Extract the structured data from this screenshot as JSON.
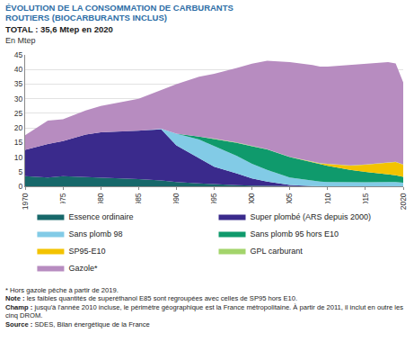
{
  "chart_data": {
    "type": "area",
    "title": "ÉVOLUTION DE LA CONSOMMATION DE CARBURANTS ROUTIERS (BIOCARBURANTS INCLUS)",
    "subtitle": "TOTAL : 35,6 Mtep en 2020",
    "y_label": "En Mtep",
    "stacked": true,
    "grid": true,
    "legend": "bottom",
    "x": [
      1970,
      1973,
      1975,
      1978,
      1980,
      1983,
      1985,
      1988,
      1990,
      1993,
      1995,
      1998,
      2000,
      2002,
      2005,
      2008,
      2009,
      2010,
      2013,
      2015,
      2018,
      2019,
      2020
    ],
    "xlim": [
      1970,
      2020
    ],
    "xticks": [
      1970,
      1975,
      1980,
      1985,
      1990,
      1995,
      2000,
      2005,
      2010,
      2015,
      2020
    ],
    "ylim": [
      0,
      45
    ],
    "yticks": [
      0,
      5,
      10,
      15,
      20,
      25,
      30,
      35,
      40,
      45
    ],
    "series": [
      {
        "name": "Essence ordinaire",
        "color": "#17686a",
        "values": [
          3.5,
          3.0,
          3.5,
          3.2,
          3.0,
          2.8,
          2.5,
          2.0,
          1.5,
          1.0,
          0.7,
          0.4,
          0.2,
          0.1,
          0,
          0,
          0,
          0,
          0,
          0,
          0,
          0,
          0
        ]
      },
      {
        "name": "Super plombé (ARS depuis 2000)",
        "color": "#3a2a8c",
        "values": [
          9.0,
          11.5,
          12.0,
          14.5,
          15.5,
          16.0,
          16.5,
          17.5,
          12.5,
          8.5,
          6.0,
          4.0,
          2.5,
          1.5,
          0.5,
          0.1,
          0,
          0,
          0,
          0,
          0,
          0,
          0
        ]
      },
      {
        "name": "Sans plomb 98",
        "color": "#82cbe6",
        "values": [
          0,
          0,
          0,
          0,
          0,
          0,
          0,
          0.2,
          4.0,
          6.5,
          7.0,
          6.0,
          5.0,
          4.0,
          2.5,
          1.7,
          1.6,
          1.5,
          1.4,
          1.4,
          1.5,
          1.5,
          1.2
        ]
      },
      {
        "name": "Sans plomb 95 hors E10",
        "color": "#0f9a6c",
        "values": [
          0,
          0,
          0,
          0,
          0,
          0,
          0,
          0,
          0,
          1.0,
          2.5,
          4.5,
          6.0,
          7.0,
          7.0,
          6.5,
          6.0,
          5.5,
          4.2,
          3.5,
          2.6,
          2.3,
          2.0
        ]
      },
      {
        "name": "SP95-E10",
        "color": "#f3c300",
        "values": [
          0,
          0,
          0,
          0,
          0,
          0,
          0,
          0,
          0,
          0,
          0,
          0,
          0,
          0,
          0,
          0,
          0.2,
          0.6,
          1.5,
          2.5,
          4.0,
          4.5,
          4.2
        ]
      },
      {
        "name": "GPL carburant",
        "color": "#a3d46b",
        "values": [
          0,
          0,
          0,
          0,
          0,
          0,
          0,
          0,
          0,
          0,
          0.1,
          0.1,
          0.15,
          0.15,
          0.1,
          0.1,
          0.1,
          0.1,
          0.1,
          0.1,
          0.1,
          0.1,
          0.1
        ]
      },
      {
        "name": "Gazole*",
        "color": "#b78cc0",
        "values": [
          5.0,
          8.0,
          7.5,
          8.3,
          9.0,
          10.2,
          11.0,
          13.3,
          17.0,
          20.5,
          22.2,
          25.5,
          28.15,
          30.25,
          32.4,
          33.1,
          33.1,
          33.3,
          34.3,
          34.5,
          34.3,
          33.7,
          28.1
        ]
      }
    ],
    "notes": [
      {
        "text": "* Hors gazole pêche à partir de 2019."
      },
      {
        "label": "Note :",
        "text": "les faibles quantités de superéthanol E85 sont regroupées avec celles de SP95 hors E10."
      },
      {
        "label": "Champ :",
        "text": "jusqu'à l'année 2010 incluse, le périmètre géographique est la France métropolitaine. À partir de 2011, il inclut en outre les cinq DROM."
      },
      {
        "label": "Source :",
        "text": "SDES, Bilan énergétique de la France"
      }
    ]
  }
}
